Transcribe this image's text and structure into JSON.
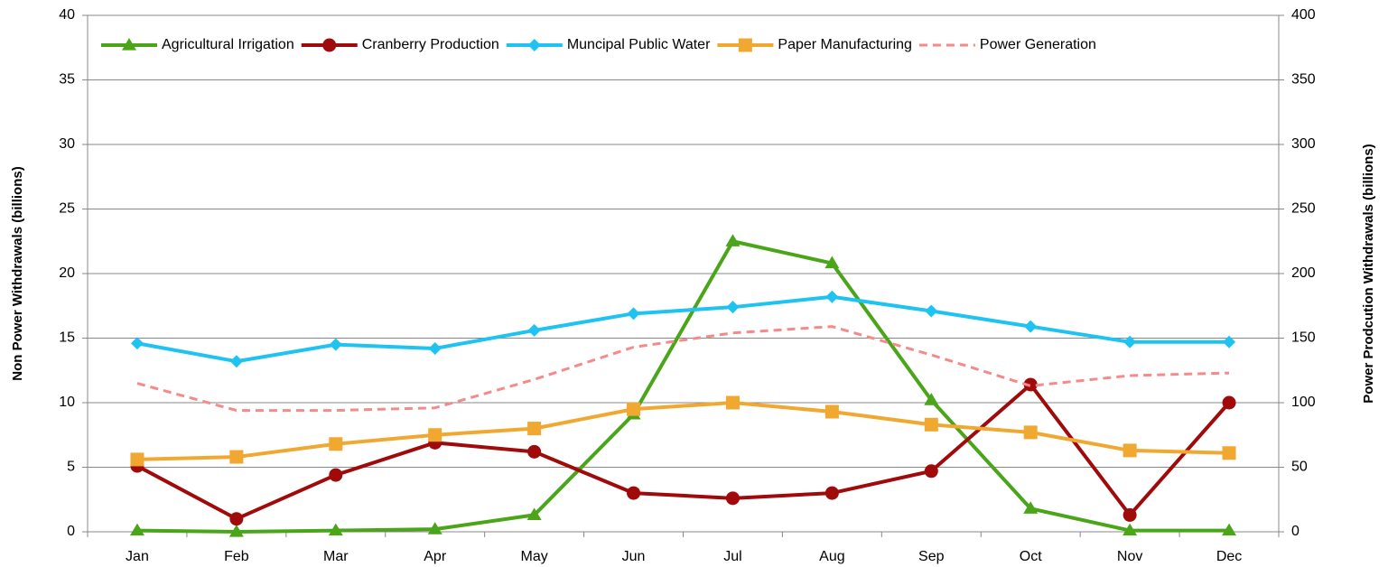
{
  "chart_data": {
    "type": "line",
    "categories": [
      "Jan",
      "Feb",
      "Mar",
      "Apr",
      "May",
      "Jun",
      "Jul",
      "Aug",
      "Sep",
      "Oct",
      "Nov",
      "Dec"
    ],
    "series": [
      {
        "name": "Agricultural Irrigation",
        "color": "#4aa519",
        "marker": "triangle",
        "values": [
          0.1,
          0,
          0.1,
          0.2,
          1.3,
          9.1,
          22.5,
          20.8,
          10.2,
          1.8,
          0.1,
          0.1
        ]
      },
      {
        "name": "Cranberry Production",
        "color": "#a00a0a",
        "marker": "circle",
        "values": [
          5.1,
          1.0,
          4.4,
          6.9,
          6.2,
          3.0,
          2.6,
          3.0,
          4.7,
          11.4,
          1.3,
          10.0
        ]
      },
      {
        "name": "Muncipal Public Water",
        "color": "#1ec3f2",
        "marker": "diamond",
        "values": [
          14.6,
          13.2,
          14.5,
          14.2,
          15.6,
          16.9,
          17.4,
          18.2,
          17.1,
          15.9,
          14.7,
          14.7
        ]
      },
      {
        "name": "Paper Manufacturing",
        "color": "#f0a830",
        "marker": "square",
        "values": [
          5.6,
          5.8,
          6.8,
          7.5,
          8.0,
          9.5,
          10.0,
          9.3,
          8.3,
          7.7,
          6.3,
          6.1
        ]
      },
      {
        "name": "Power Generation",
        "color": "#f48a8a",
        "marker": "none",
        "dash": true,
        "axis": "y2",
        "values": [
          115,
          94,
          94,
          96,
          118,
          143,
          154,
          159,
          137,
          113,
          121,
          123
        ]
      }
    ],
    "ylabel": "Non Power Withdrawals (billions)",
    "y2label": "Power Prodcution Withdrawals (billions)",
    "ylim": [
      0,
      40
    ],
    "yticks": [
      0,
      5,
      10,
      15,
      20,
      25,
      30,
      35,
      40
    ],
    "y2lim": [
      0,
      400
    ],
    "y2ticks": [
      0,
      50,
      100,
      150,
      200,
      250,
      300,
      350,
      400
    ],
    "grid": true,
    "legend": "top"
  }
}
